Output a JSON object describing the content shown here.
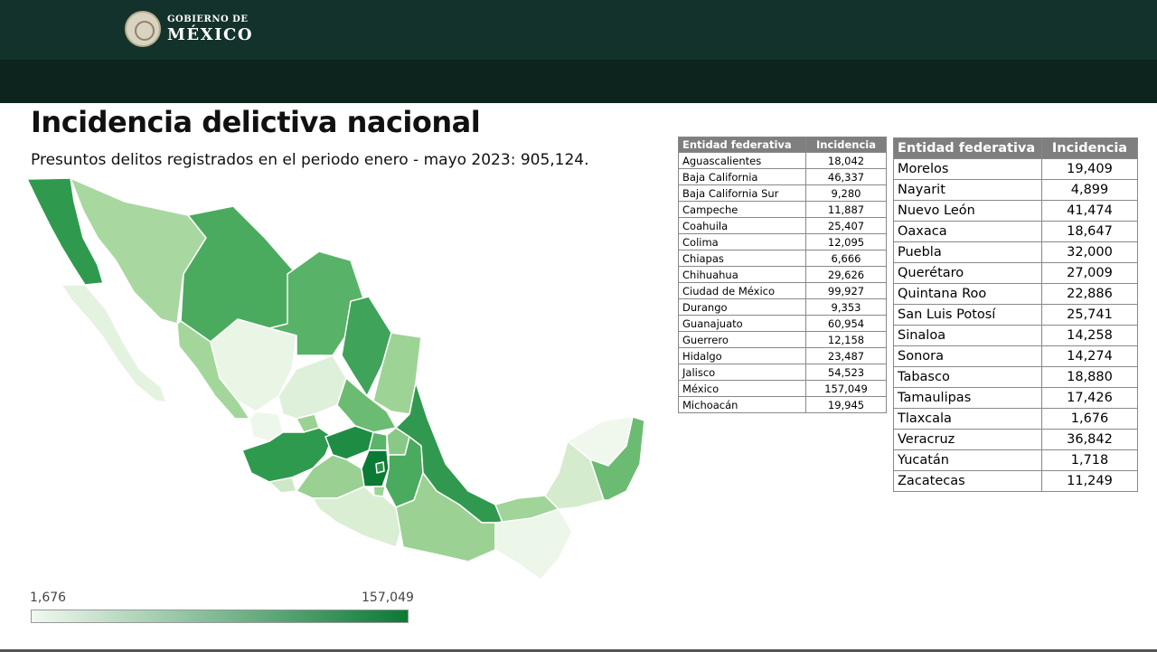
{
  "header": {
    "logo_small": "GOBIERNO DE",
    "logo_big": "MÉXICO",
    "bg_color": "#13322b"
  },
  "title": "Incidencia delictiva nacional",
  "subtitle": "Presuntos delitos registrados en el periodo enero - mayo 2023: 905,124.",
  "legend": {
    "min": "1,676",
    "max": "157,049",
    "color_low": "#f1f8ef",
    "color_high": "#0b7a35"
  },
  "table_headers": {
    "entity": "Entidad federativa",
    "incidence": "Incidencia"
  },
  "table_left": [
    {
      "entity": "Aguascalientes",
      "value": "18,042"
    },
    {
      "entity": "Baja California",
      "value": "46,337"
    },
    {
      "entity": "Baja California Sur",
      "value": "9,280"
    },
    {
      "entity": "Campeche",
      "value": "11,887"
    },
    {
      "entity": "Coahuila",
      "value": "25,407"
    },
    {
      "entity": "Colima",
      "value": "12,095"
    },
    {
      "entity": "Chiapas",
      "value": "6,666"
    },
    {
      "entity": "Chihuahua",
      "value": "29,626"
    },
    {
      "entity": "Ciudad de México",
      "value": "99,927"
    },
    {
      "entity": "Durango",
      "value": "9,353"
    },
    {
      "entity": "Guanajuato",
      "value": "60,954"
    },
    {
      "entity": "Guerrero",
      "value": "12,158"
    },
    {
      "entity": "Hidalgo",
      "value": "23,487"
    },
    {
      "entity": "Jalisco",
      "value": "54,523"
    },
    {
      "entity": "México",
      "value": "157,049"
    },
    {
      "entity": "Michoacán",
      "value": "19,945"
    }
  ],
  "table_right": [
    {
      "entity": "Morelos",
      "value": "19,409"
    },
    {
      "entity": "Nayarit",
      "value": "4,899"
    },
    {
      "entity": "Nuevo León",
      "value": "41,474"
    },
    {
      "entity": "Oaxaca",
      "value": "18,647"
    },
    {
      "entity": "Puebla",
      "value": "32,000"
    },
    {
      "entity": "Querétaro",
      "value": "27,009"
    },
    {
      "entity": "Quintana Roo",
      "value": "22,886"
    },
    {
      "entity": "San Luis Potosí",
      "value": "25,741"
    },
    {
      "entity": "Sinaloa",
      "value": "14,258"
    },
    {
      "entity": "Sonora",
      "value": "14,274"
    },
    {
      "entity": "Tabasco",
      "value": "18,880"
    },
    {
      "entity": "Tamaulipas",
      "value": "17,426"
    },
    {
      "entity": "Tlaxcala",
      "value": "1,676"
    },
    {
      "entity": "Veracruz",
      "value": "36,842"
    },
    {
      "entity": "Yucatán",
      "value": "1,718"
    },
    {
      "entity": "Zacatecas",
      "value": "11,249"
    }
  ]
}
